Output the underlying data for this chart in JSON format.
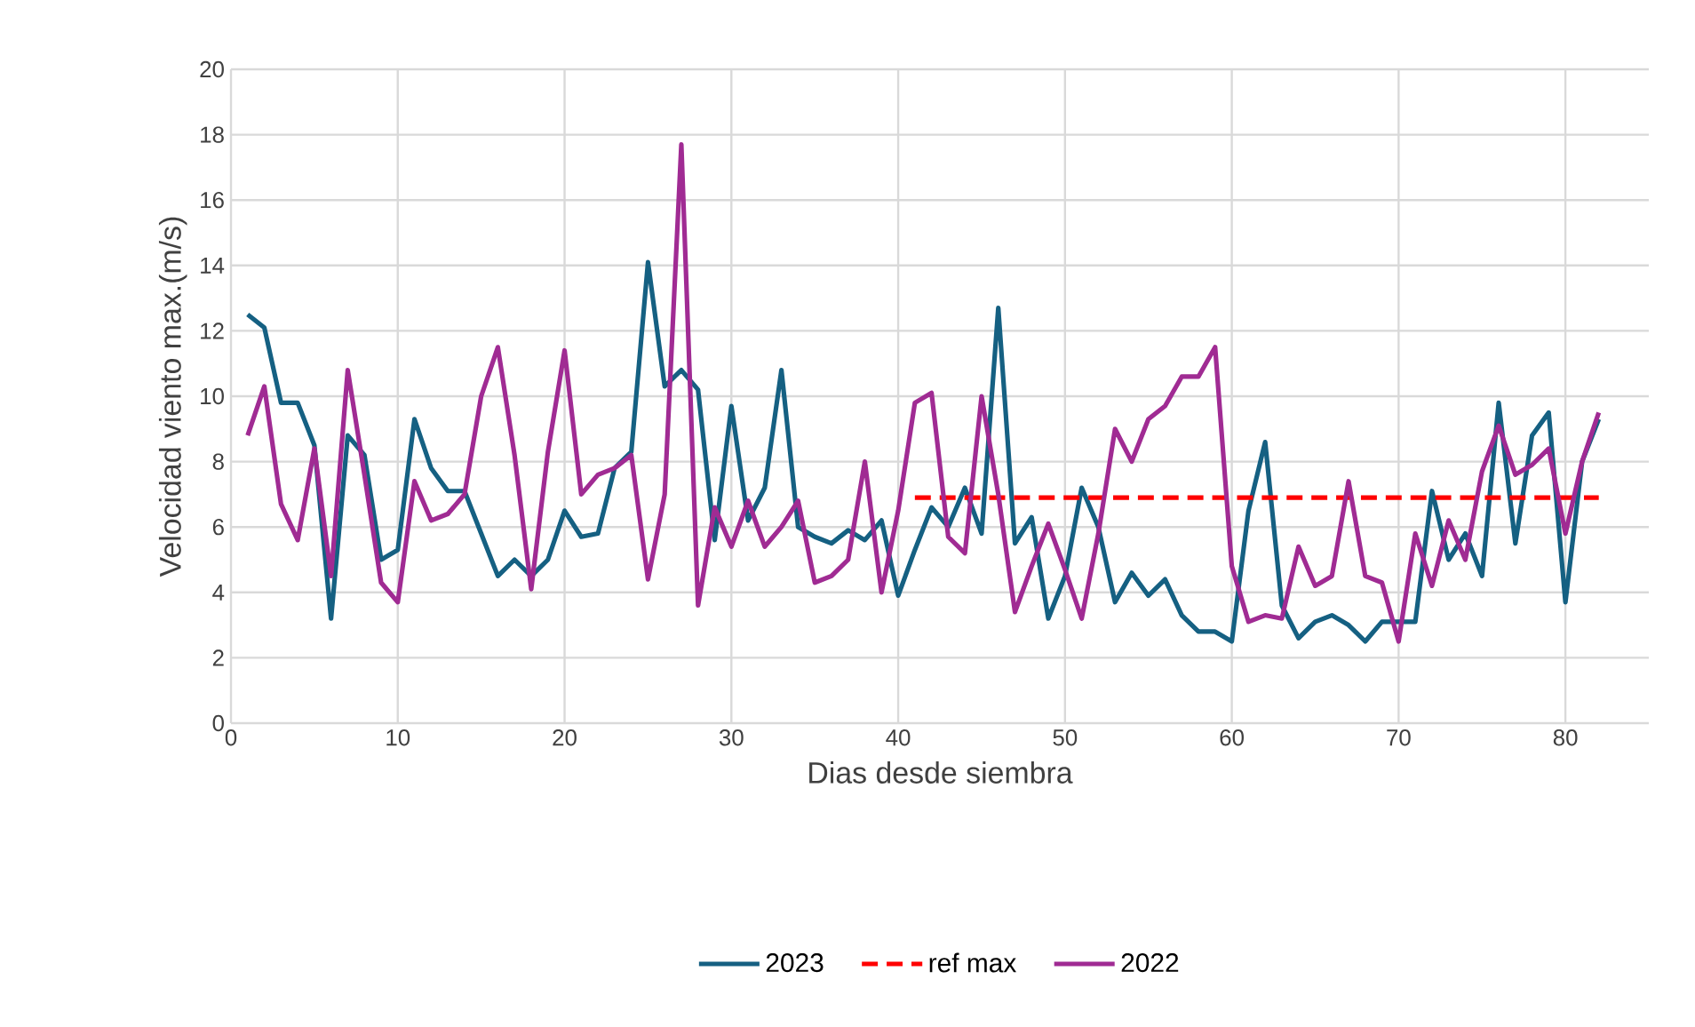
{
  "chart_data": {
    "type": "line",
    "xlabel": "Dias desde siembra",
    "ylabel": "Velocidad viento max.(m/s)",
    "xlim": [
      0,
      85
    ],
    "xticks": [
      0,
      10,
      20,
      30,
      40,
      50,
      60,
      70,
      80
    ],
    "ylim": [
      0,
      20
    ],
    "yticks": [
      0,
      2,
      4,
      6,
      8,
      10,
      12,
      14,
      16,
      18,
      20
    ],
    "grid": true,
    "legend": "bottom",
    "series": [
      {
        "name": "2023",
        "color": "#156082",
        "line_style": "solid",
        "x": [
          1,
          2,
          3,
          4,
          5,
          6,
          7,
          8,
          9,
          10,
          11,
          12,
          13,
          14,
          15,
          16,
          17,
          18,
          19,
          20,
          21,
          22,
          23,
          24,
          25,
          26,
          27,
          28,
          29,
          30,
          31,
          32,
          33,
          34,
          35,
          36,
          37,
          38,
          39,
          40,
          41,
          42,
          43,
          44,
          45,
          46,
          47,
          48,
          49,
          50,
          51,
          52,
          53,
          54,
          55,
          56,
          57,
          58,
          59,
          60,
          61,
          62,
          63,
          64,
          65,
          66,
          67,
          68,
          69,
          70,
          71,
          72,
          73,
          74,
          75,
          76,
          77,
          78,
          79,
          80,
          81,
          82
        ],
        "values": [
          12.5,
          12.1,
          9.8,
          9.8,
          8.5,
          3.2,
          8.8,
          8.2,
          5.0,
          5.3,
          9.3,
          7.8,
          7.1,
          7.1,
          5.8,
          4.5,
          5.0,
          4.5,
          5.0,
          6.5,
          5.7,
          5.8,
          7.8,
          8.3,
          14.1,
          10.3,
          10.8,
          10.2,
          5.6,
          9.7,
          6.2,
          7.2,
          10.8,
          6.0,
          5.7,
          5.5,
          5.9,
          5.6,
          6.2,
          3.9,
          5.3,
          6.6,
          6.0,
          7.2,
          5.8,
          12.7,
          5.5,
          6.3,
          3.2,
          4.5,
          7.2,
          6.0,
          3.7,
          4.6,
          3.9,
          4.4,
          3.3,
          2.8,
          2.8,
          2.5,
          6.5,
          8.6,
          3.6,
          2.6,
          3.1,
          3.3,
          3.0,
          2.5,
          3.1,
          3.1,
          3.1,
          7.1,
          5.0,
          5.8,
          4.5,
          9.8,
          5.5,
          8.8,
          9.5,
          3.7,
          8.0,
          9.3
        ]
      },
      {
        "name": "ref max",
        "color": "#ff0000",
        "line_style": "dashed",
        "x": [
          41,
          82
        ],
        "values": [
          6.9,
          6.9
        ]
      },
      {
        "name": "2022",
        "color": "#a02b93",
        "line_style": "solid",
        "x": [
          1,
          2,
          3,
          4,
          5,
          6,
          7,
          8,
          9,
          10,
          11,
          12,
          13,
          14,
          15,
          16,
          17,
          18,
          19,
          20,
          21,
          22,
          23,
          24,
          25,
          26,
          27,
          28,
          29,
          30,
          31,
          32,
          33,
          34,
          35,
          36,
          37,
          38,
          39,
          40,
          41,
          42,
          43,
          44,
          45,
          46,
          47,
          48,
          49,
          50,
          51,
          52,
          53,
          54,
          55,
          56,
          57,
          58,
          59,
          60,
          61,
          62,
          63,
          64,
          65,
          66,
          67,
          68,
          69,
          70,
          71,
          72,
          73,
          74,
          75,
          76,
          77,
          78,
          79,
          80,
          81,
          82
        ],
        "values": [
          8.8,
          10.3,
          6.7,
          5.6,
          8.4,
          4.5,
          10.8,
          7.6,
          4.3,
          3.7,
          7.4,
          6.2,
          6.4,
          7.0,
          10.0,
          11.5,
          8.2,
          4.1,
          8.3,
          11.4,
          7.0,
          7.6,
          7.8,
          8.2,
          4.4,
          7.0,
          17.7,
          3.6,
          6.6,
          5.4,
          6.8,
          5.4,
          6.0,
          6.8,
          4.3,
          4.5,
          5.0,
          8.0,
          4.0,
          6.5,
          9.8,
          10.1,
          5.7,
          5.2,
          10.0,
          7.0,
          3.4,
          4.8,
          6.1,
          4.7,
          3.2,
          5.8,
          9.0,
          8.0,
          9.3,
          9.7,
          10.6,
          10.6,
          11.5,
          4.8,
          3.1,
          3.3,
          3.2,
          5.4,
          4.2,
          4.5,
          7.4,
          4.5,
          4.3,
          2.5,
          5.8,
          4.2,
          6.2,
          5.0,
          7.7,
          9.1,
          7.6,
          7.9,
          8.4,
          5.8,
          8.0,
          9.5
        ]
      }
    ]
  }
}
